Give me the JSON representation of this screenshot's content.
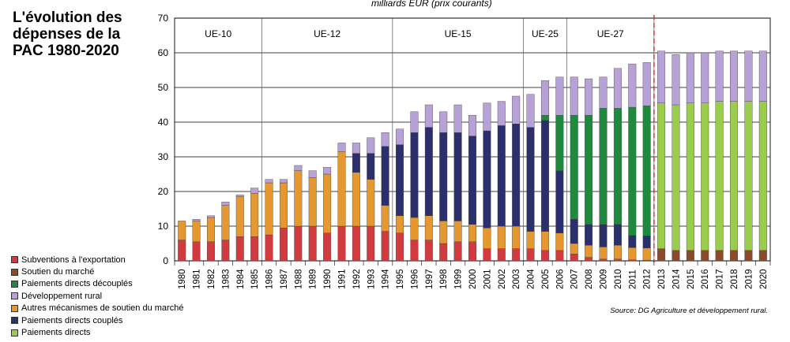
{
  "title_lines": [
    "L'évolution des",
    "dépenses de la",
    "PAC 1980-2020"
  ],
  "unit_label": "milliards EUR (prix courants)",
  "source": "Source: DG Agriculture et développement rural.",
  "legend": [
    {
      "label": "Subventions à l'exportation",
      "color": "#d13b3f"
    },
    {
      "label": "Soutien du marché",
      "color": "#8b4a2b"
    },
    {
      "label": "Paiements directs découplés",
      "color": "#1f8a3e"
    },
    {
      "label": "Développement rural",
      "color": "#b6a2d6"
    },
    {
      "label": "Autres mécanismes de soutien du marché",
      "color": "#e4982f"
    },
    {
      "label": "Paiements directs couplés",
      "color": "#2b2f6b"
    },
    {
      "label": "Paiements directs",
      "color": "#9acd4c"
    }
  ],
  "periods": [
    {
      "label": "UE-10",
      "from": "1980",
      "to": "1985"
    },
    {
      "label": "UE-12",
      "from": "1986",
      "to": "1994"
    },
    {
      "label": "UE-15",
      "from": "1995",
      "to": "2003"
    },
    {
      "label": "UE-25",
      "from": "2004",
      "to": "2006"
    },
    {
      "label": "UE-27",
      "from": "2007",
      "to": "2012"
    }
  ],
  "chart_data": {
    "type": "bar",
    "stacked": true,
    "categories": [
      "1980",
      "1981",
      "1982",
      "1983",
      "1984",
      "1985",
      "1986",
      "1987",
      "1988",
      "1989",
      "1990",
      "1991",
      "1992",
      "1993",
      "1994",
      "1995",
      "1996",
      "1997",
      "1998",
      "1999",
      "2000",
      "2001",
      "2002",
      "2003",
      "2004",
      "2005",
      "2006",
      "2007",
      "2008",
      "2009",
      "2010",
      "2011",
      "2012",
      "2013",
      "2014",
      "2015",
      "2016",
      "2017",
      "2018",
      "2019",
      "2020"
    ],
    "ylim": [
      0,
      70
    ],
    "yticks": [
      0,
      10,
      20,
      30,
      40,
      50,
      60,
      70
    ],
    "projection_start": "2013",
    "grid": true,
    "series": [
      {
        "name": "Subventions à l'exportation",
        "values": [
          6,
          5.5,
          5.5,
          6,
          7,
          7,
          7.5,
          9.5,
          10,
          10,
          8,
          10,
          10,
          10,
          8.5,
          8,
          6,
          6,
          5,
          5.5,
          5.5,
          3.5,
          3.5,
          3.5,
          3.5,
          3,
          3,
          2,
          1,
          0.5,
          0.5,
          0.3,
          0.2,
          0,
          0,
          0,
          0,
          0,
          0,
          0,
          0
        ]
      },
      {
        "name": "Soutien du marché",
        "values": [
          0,
          0,
          0,
          0,
          0,
          0,
          0,
          0,
          0,
          0,
          0,
          0,
          0,
          0,
          0,
          0,
          0,
          0,
          0,
          0,
          0,
          0,
          0,
          0,
          0,
          0,
          0,
          0,
          0,
          0,
          0,
          0,
          0,
          3.5,
          3,
          3,
          3,
          3,
          3,
          3,
          3
        ]
      },
      {
        "name": "Autres mécanismes de soutien du marché",
        "values": [
          5.5,
          6,
          7,
          10,
          11.5,
          12.5,
          15,
          13,
          16,
          14,
          17,
          21.5,
          15.5,
          13.5,
          7.5,
          5,
          6.5,
          7,
          6.5,
          6,
          5,
          6,
          6.5,
          6.5,
          5,
          5.5,
          5,
          3,
          3.5,
          3.5,
          4,
          3.5,
          3.5,
          0,
          0,
          0,
          0,
          0,
          0,
          0,
          0
        ]
      },
      {
        "name": "Paiements directs couplés",
        "values": [
          0,
          0,
          0,
          0,
          0,
          0,
          0,
          0,
          0,
          0,
          0,
          0,
          5.5,
          7.5,
          17,
          20.5,
          24.5,
          25.5,
          25.5,
          25.5,
          25.5,
          28,
          29,
          29.5,
          30,
          32,
          18,
          7,
          6,
          6.5,
          6,
          3.5,
          3.5,
          0,
          0,
          0,
          0,
          0,
          0,
          0,
          0
        ]
      },
      {
        "name": "Paiements directs découplés",
        "values": [
          0,
          0,
          0,
          0,
          0,
          0,
          0,
          0,
          0,
          0,
          0,
          0,
          0,
          0,
          0,
          0,
          0,
          0,
          0,
          0,
          0,
          0,
          0,
          0,
          0,
          1.5,
          16,
          30,
          31.5,
          33.5,
          33.5,
          37,
          37.5,
          0,
          0,
          0,
          0,
          0,
          0,
          0,
          0
        ]
      },
      {
        "name": "Paiements directs",
        "values": [
          0,
          0,
          0,
          0,
          0,
          0,
          0,
          0,
          0,
          0,
          0,
          0,
          0,
          0,
          0,
          0,
          0,
          0,
          0,
          0,
          0,
          0,
          0,
          0,
          0,
          0,
          0,
          0,
          0,
          0,
          0,
          0,
          0,
          42,
          42,
          42.5,
          42.5,
          43,
          43,
          43,
          43
        ]
      },
      {
        "name": "Développement rural",
        "values": [
          0,
          0.5,
          0.5,
          1,
          0.5,
          1.5,
          1,
          1,
          1.5,
          2,
          2,
          2.5,
          3,
          4.5,
          4,
          4.5,
          6,
          6.5,
          6,
          8,
          6,
          8,
          7,
          8,
          9.5,
          10,
          11,
          11,
          10.5,
          9,
          11.5,
          12.5,
          12.5,
          15,
          14.5,
          14.5,
          14.5,
          14.5,
          14.5,
          14.5,
          14.5
        ]
      }
    ]
  }
}
